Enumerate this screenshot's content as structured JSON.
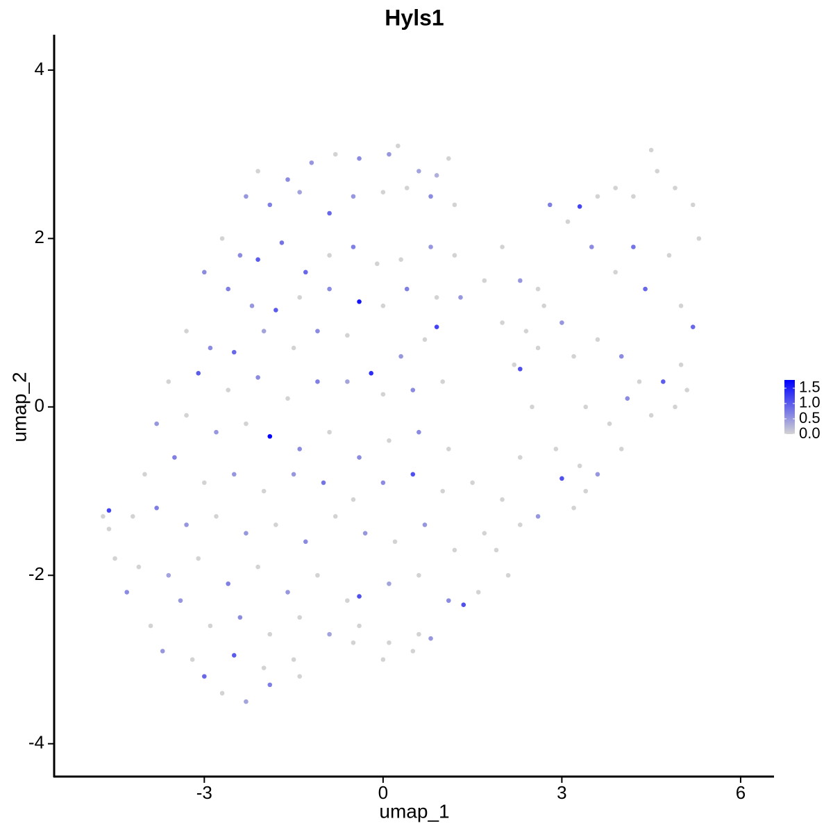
{
  "chart_data": {
    "type": "scatter",
    "title": "Hyls1",
    "x_label": "umap_1",
    "y_label": "umap_2",
    "xlim": [
      -5.52,
      6.56
    ],
    "ylim": [
      -4.39,
      4.42
    ],
    "xticks": [
      -3,
      0,
      3,
      6
    ],
    "yticks": [
      -4,
      -2,
      0,
      2,
      4
    ],
    "low_color": "#d3d3d3",
    "high_color": "#0000ff",
    "colorlim": [
      0,
      1.77
    ],
    "colorticks": [
      {
        "value": 0,
        "label": "0.0"
      },
      {
        "value": 0.5,
        "label": "0.5"
      },
      {
        "value": 1,
        "label": "1.0"
      },
      {
        "value": 1.5,
        "label": "1.5"
      }
    ],
    "x": [
      -2.1,
      -1.6,
      -1.2,
      -0.8,
      -0.4,
      0.1,
      0.25,
      0.6,
      0.9,
      1.1,
      -2.3,
      -1.9,
      -1.4,
      -0.9,
      -0.5,
      0,
      0.4,
      0.8,
      1.2,
      -2.7,
      -2.4,
      -2.1,
      -1.7,
      -1.3,
      -0.9,
      -0.5,
      -0.1,
      0.3,
      0.8,
      1.2,
      -3.0,
      -2.6,
      -2.2,
      -1.8,
      -1.4,
      -0.9,
      -0.4,
      0,
      0.4,
      0.9,
      1.3,
      -3.3,
      -2.9,
      -2.5,
      -2.0,
      -1.5,
      -1.1,
      -0.6,
      -0.2,
      0.3,
      0.7,
      0.9,
      -3.6,
      -3.1,
      -2.6,
      -2.1,
      -1.6,
      -1.1,
      -0.6,
      0,
      0.5,
      1.0,
      -3.8,
      -3.3,
      -2.8,
      -2.3,
      -1.9,
      -1.4,
      -0.9,
      -0.4,
      0.1,
      0.6,
      1.1,
      -4.0,
      -3.5,
      -3.0,
      -2.5,
      -2.0,
      -1.5,
      -1.0,
      -0.5,
      0,
      0.5,
      1.0,
      1.5,
      -4.6,
      -4.7,
      -4.6,
      -4.2,
      -3.8,
      -3.3,
      -2.8,
      -2.3,
      -1.8,
      -1.3,
      -0.8,
      -0.3,
      0.2,
      0.7,
      1.2,
      1.7,
      -4.5,
      -4.1,
      -3.6,
      -3.1,
      -2.6,
      -2.1,
      -1.6,
      -1.1,
      -0.6,
      -0.4,
      0.1,
      0.6,
      1.1,
      1.35,
      -4.3,
      -3.9,
      -3.4,
      -2.9,
      -2.4,
      -1.9,
      -1.4,
      -0.9,
      -0.4,
      0.1,
      0.6,
      0.8,
      -3.7,
      -3.2,
      -3.0,
      -2.5,
      -2.0,
      -1.5,
      -1.4,
      -0.5,
      0,
      0.5,
      -2.7,
      -2.3,
      -1.9,
      1.7,
      2.0,
      2.3,
      2.6,
      2.8,
      3.1,
      3.3,
      3.6,
      3.9,
      4.2,
      4.5,
      4.6,
      4.9,
      5.2,
      5.3,
      2.0,
      2.4,
      2.7,
      3.0,
      3.5,
      3.9,
      4.2,
      4.4,
      4.8,
      5.0,
      5.2,
      2.2,
      2.3,
      2.6,
      3.2,
      3.6,
      4.0,
      4.3,
      4.7,
      5.0,
      5.1,
      2.5,
      3.4,
      3.8,
      4.1,
      4.5,
      4.9,
      2.3,
      2.9,
      3.3,
      3.6,
      4.0,
      2.0,
      2.6,
      3.0,
      3.4,
      3.2,
      1.9,
      2.3,
      2.1,
      1.6
    ],
    "values": [
      2.8,
      2.7,
      2.9,
      3.0,
      2.95,
      3.0,
      3.1,
      2.8,
      2.75,
      2.95,
      2.5,
      2.4,
      2.55,
      2.3,
      2.5,
      2.55,
      2.6,
      2.5,
      2.4,
      2.0,
      1.8,
      1.75,
      1.95,
      1.6,
      1.8,
      1.9,
      1.7,
      1.75,
      1.9,
      1.8,
      1.6,
      1.4,
      1.2,
      1.15,
      1.3,
      1.4,
      1.25,
      1.2,
      1.4,
      1.3,
      1.3,
      0.9,
      0.7,
      0.65,
      0.9,
      0.7,
      0.9,
      0.85,
      0.4,
      0.6,
      0.8,
      0.95,
      0.3,
      0.4,
      0.2,
      0.35,
      0.1,
      0.3,
      0.3,
      0.15,
      0.2,
      0.3,
      -0.2,
      -0.1,
      -0.3,
      -0.2,
      -0.35,
      -0.5,
      -0.3,
      -0.6,
      -0.4,
      -0.3,
      -0.5,
      -0.8,
      -0.6,
      -0.9,
      -0.8,
      -1.0,
      -0.8,
      -0.9,
      -1.1,
      -0.9,
      -0.8,
      -1.0,
      -0.9,
      -1.23,
      -1.3,
      -1.45,
      -1.3,
      -1.2,
      -1.4,
      -1.3,
      -1.5,
      -1.4,
      -1.6,
      -1.3,
      -1.5,
      -1.6,
      -1.4,
      -1.7,
      -1.5,
      -1.8,
      -1.9,
      -2.0,
      -1.8,
      -2.1,
      -1.9,
      -2.2,
      -2.0,
      -2.3,
      -2.25,
      -2.1,
      -2.0,
      -2.3,
      -2.35,
      -2.2,
      -2.6,
      -2.3,
      -2.6,
      -2.5,
      -2.7,
      -2.5,
      -2.7,
      -2.6,
      -2.8,
      -2.7,
      -2.75,
      -2.9,
      -3.0,
      -3.2,
      -2.95,
      -3.1,
      -3.0,
      -3.2,
      -2.8,
      -3.0,
      -2.9,
      -3.4,
      -3.5,
      -3.3,
      1.5,
      1.9,
      1.5,
      1.4,
      2.4,
      2.2,
      2.38,
      2.5,
      2.6,
      2.5,
      3.05,
      2.8,
      2.6,
      2.4,
      2.0,
      1.0,
      0.9,
      1.2,
      1.0,
      1.9,
      1.6,
      1.9,
      1.4,
      1.8,
      1.2,
      0.95,
      0.5,
      0.45,
      0.7,
      0.6,
      0.8,
      0.6,
      0.3,
      0.3,
      0.5,
      0.2,
      0.0,
      0.0,
      -0.2,
      0.1,
      -0.1,
      0.0,
      -0.6,
      -0.5,
      -0.7,
      -0.8,
      -0.5,
      -1.1,
      -1.3,
      -0.85,
      -1.0,
      -1.2,
      -1.7,
      -1.4,
      -2.0,
      -2.2
    ],
    "expression": [
      0,
      0.6,
      0.5,
      0,
      0.6,
      0.5,
      0,
      0.4,
      0.3,
      0,
      0.5,
      0.7,
      0.4,
      0.9,
      0.5,
      0,
      0,
      0.6,
      0,
      0,
      0.6,
      1.0,
      0.8,
      0.9,
      0,
      0.7,
      0,
      0,
      0.5,
      0,
      0.6,
      0.7,
      0.5,
      1.0,
      0,
      0.6,
      1.6,
      0,
      0.7,
      0,
      0.5,
      0,
      0.6,
      0.9,
      0.4,
      0,
      0.6,
      0,
      1.4,
      0.5,
      0,
      1.2,
      0,
      1.0,
      0,
      0.6,
      0,
      0.7,
      0.4,
      0,
      0.6,
      0,
      0.5,
      0,
      0.5,
      0,
      1.75,
      0.6,
      0,
      0.6,
      0,
      0.6,
      0,
      0,
      0.7,
      0,
      0.5,
      0,
      0.5,
      0.8,
      0,
      0.6,
      1.1,
      0,
      0,
      1.2,
      0,
      0,
      0,
      0.7,
      0.5,
      0,
      0.5,
      0,
      0.6,
      0,
      0.5,
      0,
      0.5,
      0,
      0,
      0,
      0,
      0.4,
      0,
      0.7,
      0,
      0.5,
      0,
      0,
      1.1,
      0.4,
      0,
      0.6,
      1.1,
      0.6,
      0,
      0.5,
      0,
      0.6,
      0,
      0,
      0.4,
      0,
      0,
      0,
      0.5,
      0.5,
      0,
      0.9,
      1.0,
      0,
      0,
      0,
      0,
      0,
      0,
      0,
      0.4,
      0.7,
      0,
      0,
      0.5,
      0,
      0.7,
      0,
      1.2,
      0,
      0,
      0,
      0,
      0,
      0,
      0,
      0,
      0,
      0,
      0,
      0.5,
      0.6,
      0,
      0.8,
      0.9,
      0,
      0,
      0.9,
      0,
      1.1,
      0,
      0,
      0,
      0.6,
      0,
      1.0,
      0,
      0,
      0,
      0,
      0,
      0.6,
      0,
      0,
      0,
      0,
      0,
      0.5,
      0,
      0,
      0.5,
      1.1,
      0,
      0,
      0,
      0,
      0,
      0
    ]
  }
}
